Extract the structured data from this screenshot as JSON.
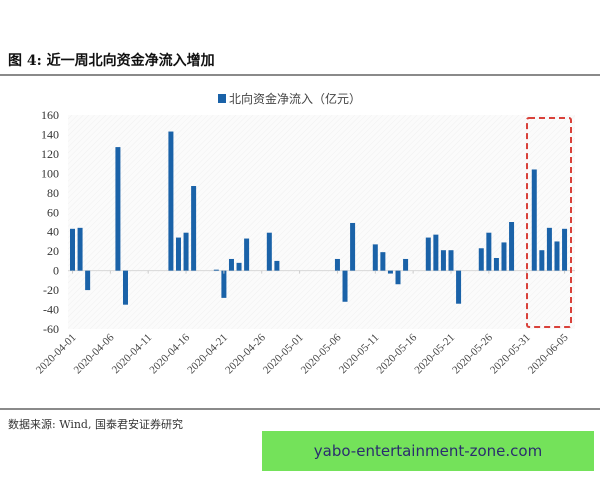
{
  "figure": {
    "title": "图 4:  近一周北向资金净流入增加",
    "source": "数据来源: Wind, 国泰君安证券研究",
    "watermark": "yabo-entertainment-zone.com"
  },
  "colors": {
    "bar": "#1a62a8",
    "highlight_box": "#d9413a",
    "watermark_bg": "#74e25a"
  },
  "chart_data": {
    "type": "bar",
    "title": "近一周北向资金净流入增加",
    "xlabel": "",
    "ylabel": "",
    "legend": [
      "北向资金净流入（亿元）"
    ],
    "legend_position": "top",
    "ylim": [
      -60,
      160
    ],
    "yticks": [
      160,
      140,
      120,
      100,
      80,
      60,
      40,
      20,
      0,
      -20,
      -40,
      -60
    ],
    "xtick_labels": [
      "2020-04-01",
      "2020-04-06",
      "2020-04-11",
      "2020-04-16",
      "2020-04-21",
      "2020-04-26",
      "2020-05-01",
      "2020-05-06",
      "2020-05-11",
      "2020-05-16",
      "2020-05-21",
      "2020-05-26",
      "2020-05-31",
      "2020-06-05"
    ],
    "grid": false,
    "annotation": "red dashed box highlighting 2020-06-01 to 2020-06-05",
    "series": [
      {
        "name": "北向资金净流入（亿元）",
        "points": [
          {
            "x": "2020-04-01",
            "y": 43
          },
          {
            "x": "2020-04-02",
            "y": 44
          },
          {
            "x": "2020-04-03",
            "y": -20
          },
          {
            "x": "2020-04-07",
            "y": 127
          },
          {
            "x": "2020-04-08",
            "y": -35
          },
          {
            "x": "2020-04-14",
            "y": 143
          },
          {
            "x": "2020-04-15",
            "y": 34
          },
          {
            "x": "2020-04-16",
            "y": 39
          },
          {
            "x": "2020-04-17",
            "y": 87
          },
          {
            "x": "2020-04-20",
            "y": 1
          },
          {
            "x": "2020-04-21",
            "y": -28
          },
          {
            "x": "2020-04-22",
            "y": 12
          },
          {
            "x": "2020-04-23",
            "y": 8
          },
          {
            "x": "2020-04-24",
            "y": 33
          },
          {
            "x": "2020-04-27",
            "y": 39
          },
          {
            "x": "2020-04-28",
            "y": 10
          },
          {
            "x": "2020-05-06",
            "y": 12
          },
          {
            "x": "2020-05-07",
            "y": -32
          },
          {
            "x": "2020-05-08",
            "y": 49
          },
          {
            "x": "2020-05-11",
            "y": 27
          },
          {
            "x": "2020-05-12",
            "y": 19
          },
          {
            "x": "2020-05-13",
            "y": -3
          },
          {
            "x": "2020-05-14",
            "y": -14
          },
          {
            "x": "2020-05-15",
            "y": 12
          },
          {
            "x": "2020-05-18",
            "y": 34
          },
          {
            "x": "2020-05-19",
            "y": 37
          },
          {
            "x": "2020-05-20",
            "y": 21
          },
          {
            "x": "2020-05-21",
            "y": 21
          },
          {
            "x": "2020-05-22",
            "y": -34
          },
          {
            "x": "2020-05-25",
            "y": 23
          },
          {
            "x": "2020-05-26",
            "y": 39
          },
          {
            "x": "2020-05-27",
            "y": 13
          },
          {
            "x": "2020-05-28",
            "y": 29
          },
          {
            "x": "2020-05-29",
            "y": 50
          },
          {
            "x": "2020-06-01",
            "y": 104
          },
          {
            "x": "2020-06-02",
            "y": 21
          },
          {
            "x": "2020-06-03",
            "y": 44
          },
          {
            "x": "2020-06-04",
            "y": 30
          },
          {
            "x": "2020-06-05",
            "y": 43
          }
        ]
      }
    ]
  }
}
